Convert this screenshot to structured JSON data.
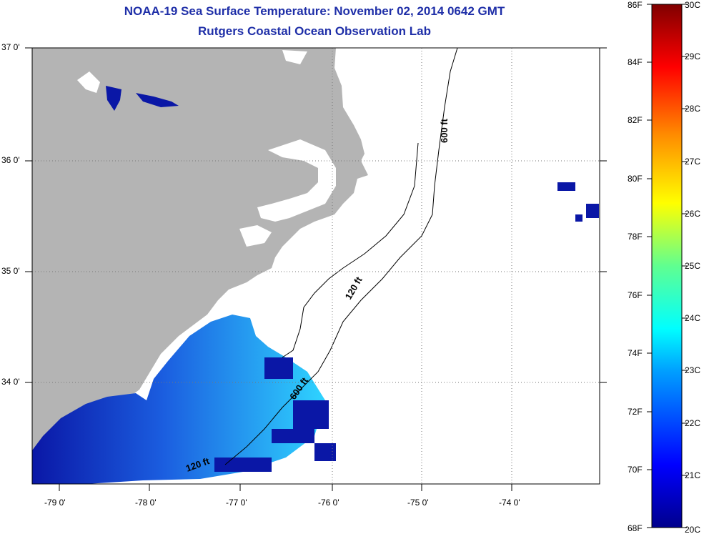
{
  "title": {
    "line1": "NOAA-19 Sea Surface Temperature:  November 02, 2014 0642 GMT",
    "line2": "Rutgers Coastal Ocean Observation Lab"
  },
  "map": {
    "lat_labels": [
      "37 0'",
      "36 0'",
      "35 0'",
      "34 0'"
    ],
    "lon_labels": [
      "-79 0'",
      "-78 0'",
      "-77 0'",
      "-76 0'",
      "-75 0'",
      "-74 0'"
    ],
    "contour_labels": {
      "c600": "600 ft",
      "c120_north": "120 ft",
      "c120_south": "120 ft",
      "c600_south": "600 ft"
    },
    "colors": {
      "land": "#b4b4b4",
      "ocean": "#ffffff",
      "cold_sst": "#0a17a6",
      "warm_sst": "#2fd4ff"
    }
  },
  "colorbar": {
    "fahrenheit": [
      "86F",
      "84F",
      "82F",
      "80F",
      "78F",
      "76F",
      "74F",
      "72F",
      "70F",
      "68F"
    ],
    "celsius": [
      "30C",
      "29C",
      "28C",
      "27C",
      "26C",
      "25C",
      "24C",
      "23C",
      "22C",
      "21C",
      "20C"
    ],
    "range_c": [
      20,
      30
    ]
  }
}
